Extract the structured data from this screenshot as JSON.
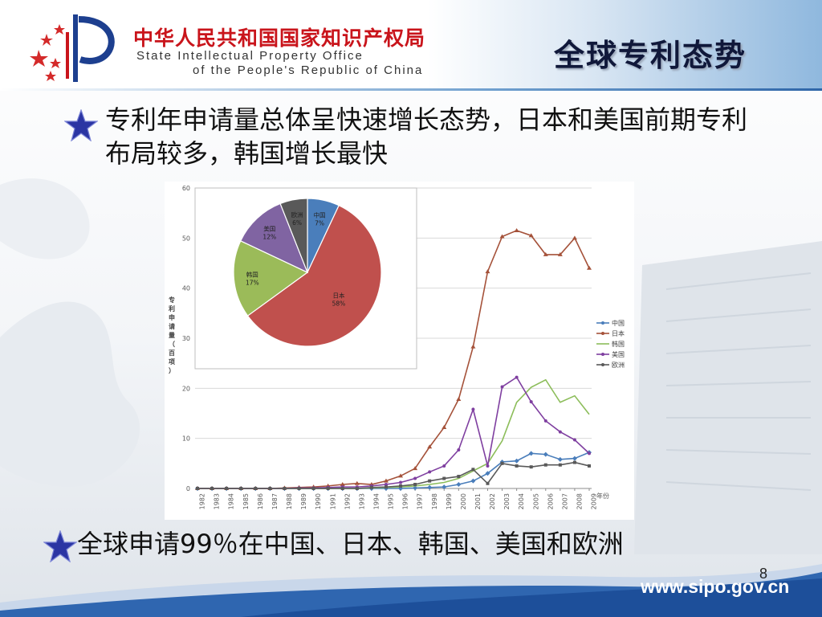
{
  "header": {
    "org_name_cn": "中华人民共和国国家知识产权局",
    "org_name_en_line1": "State Intellectual Property Office",
    "org_name_en_line2": "of the People's Republic of China",
    "slide_title": "全球专利态势"
  },
  "bullets": [
    {
      "text": "专利年申请量总体呈快速增长态势，日本和美国前期专利布局较多，韩国增长最快"
    },
    {
      "text": "全球申请99％在中国、日本、韩国、美国和欧洲"
    }
  ],
  "footer": {
    "page_number": "8",
    "url": "www.sipo.gov.cn"
  },
  "colors": {
    "star": "#2b35a3",
    "title_red": "#c9141b",
    "footer_blue": "#1d4f9a"
  },
  "chart_data": [
    {
      "type": "line",
      "ylabel": "专利申请量（百项）",
      "xlabel": "年份",
      "ylim": [
        0,
        60
      ],
      "yticks": [
        0,
        10,
        20,
        30,
        40,
        50,
        60
      ],
      "grid": true,
      "legend_position": "right",
      "x": [
        "1982",
        "1983",
        "1984",
        "1985",
        "1986",
        "1987",
        "1988",
        "1989",
        "1990",
        "1991",
        "1992",
        "1993",
        "1994",
        "1995",
        "1996",
        "1997",
        "1998",
        "1999",
        "2000",
        "2001",
        "2002",
        "2003",
        "2004",
        "2005",
        "2006",
        "2007",
        "2008",
        "2009"
      ],
      "series": [
        {
          "name": "中国",
          "color": "#4a7ebb",
          "marker": "diamond",
          "values": [
            0,
            0,
            0,
            0,
            0,
            0,
            0,
            0,
            0,
            0,
            0,
            0,
            0,
            0,
            0,
            0.1,
            0.2,
            0.3,
            0.8,
            1.5,
            3.0,
            5.3,
            5.5,
            7.0,
            6.8,
            5.8,
            6.0,
            7.2
          ]
        },
        {
          "name": "日本",
          "color": "#a5523a",
          "marker": "triangle",
          "values": [
            0,
            0,
            0,
            0,
            0,
            0,
            0.1,
            0.2,
            0.3,
            0.5,
            0.8,
            1.0,
            0.8,
            1.5,
            2.5,
            4.0,
            8.3,
            12.2,
            17.8,
            28.3,
            43.3,
            50.3,
            51.5,
            50.5,
            46.7,
            46.7,
            50.0,
            44.0
          ]
        },
        {
          "name": "韩国",
          "color": "#8cbd5a",
          "marker": "none",
          "values": [
            0,
            0,
            0,
            0,
            0,
            0,
            0,
            0,
            0,
            0,
            0,
            0,
            0.1,
            0.2,
            0.3,
            0.5,
            0.8,
            1.2,
            2.0,
            3.5,
            5.0,
            9.5,
            17.2,
            20.2,
            21.7,
            17.2,
            18.5,
            14.8
          ]
        },
        {
          "name": "美国",
          "color": "#7f3fa0",
          "marker": "circle",
          "values": [
            0,
            0,
            0,
            0,
            0,
            0,
            0,
            0.1,
            0.1,
            0.2,
            0.3,
            0.3,
            0.5,
            0.8,
            1.2,
            2.0,
            3.3,
            4.5,
            7.7,
            15.8,
            4.5,
            20.3,
            22.2,
            17.3,
            13.5,
            11.3,
            9.7,
            7.0
          ]
        },
        {
          "name": "欧洲",
          "color": "#595959",
          "marker": "square",
          "values": [
            0,
            0,
            0,
            0,
            0,
            0,
            0,
            0,
            0,
            0,
            0,
            0,
            0.2,
            0.3,
            0.5,
            0.8,
            1.5,
            2.0,
            2.4,
            3.8,
            1.0,
            5.0,
            4.5,
            4.3,
            4.7,
            4.7,
            5.2,
            4.5
          ]
        }
      ]
    },
    {
      "type": "pie",
      "slices": [
        {
          "label": "中国",
          "value": 7,
          "display": "7%",
          "color": "#4a7ebb"
        },
        {
          "label": "日本",
          "value": 58,
          "display": "58%",
          "color": "#c0504d"
        },
        {
          "label": "韩国",
          "value": 17,
          "display": "17%",
          "color": "#9bbb59"
        },
        {
          "label": "美国",
          "value": 12,
          "display": "12%",
          "color": "#8064a2"
        },
        {
          "label": "欧洲",
          "value": 6,
          "display": "6%",
          "color": "#595959"
        }
      ]
    }
  ]
}
